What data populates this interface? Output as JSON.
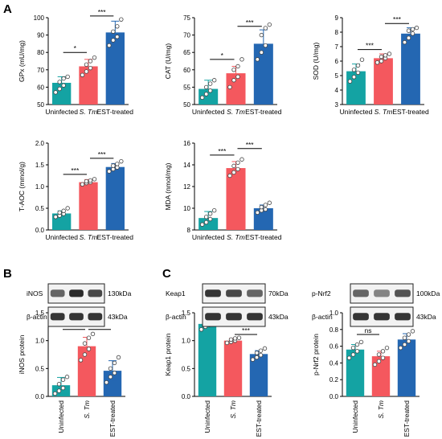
{
  "colors": {
    "uninfected": "#14a3a3",
    "stm": "#f4585e",
    "est": "#2467b2",
    "axis": "#000000",
    "band": "#2a2a2a",
    "dot": "#ffffff"
  },
  "panel_labels": [
    "A",
    "B",
    "C"
  ],
  "chart_data": [
    {
      "id": "gpx",
      "type": "bar",
      "categories": [
        "Uninfected",
        "S. Tm",
        "EST-treated"
      ],
      "values": [
        62.5,
        72,
        91.5
      ],
      "errors": [
        3.5,
        4,
        6.5
      ],
      "points": [
        [
          57,
          59,
          61,
          63,
          65,
          66
        ],
        [
          67,
          69,
          71,
          73,
          75,
          77
        ],
        [
          84,
          87,
          89,
          92,
          95,
          99
        ]
      ],
      "ylabel": "GPx (mU/mg)",
      "ylim": [
        50,
        100
      ],
      "yticks": [
        "50",
        "60",
        "70",
        "80",
        "90",
        "100"
      ],
      "sig": [
        {
          "from": 0,
          "to": 1,
          "label": "*",
          "y": 80
        },
        {
          "from": 1,
          "to": 2,
          "label": "***",
          "y": 101
        }
      ]
    },
    {
      "id": "cat",
      "type": "bar",
      "categories": [
        "Uninfected",
        "S. Tm",
        "EST-treated"
      ],
      "values": [
        54.5,
        59,
        67.5
      ],
      "errors": [
        2.5,
        2,
        4
      ],
      "points": [
        [
          52,
          53,
          54,
          55,
          56,
          57
        ],
        [
          55,
          57,
          58,
          60,
          61,
          63
        ],
        [
          63,
          65,
          67,
          70,
          72,
          73
        ]
      ],
      "ylabel": "CAT (U/mg)",
      "ylim": [
        50,
        75
      ],
      "yticks": [
        "50",
        "55",
        "60",
        "65",
        "70",
        "75"
      ],
      "sig": [
        {
          "from": 0,
          "to": 1,
          "label": "*",
          "y": 63
        },
        {
          "from": 1,
          "to": 2,
          "label": "***",
          "y": 72.5
        }
      ]
    },
    {
      "id": "sod",
      "type": "bar",
      "categories": [
        "Uninfected",
        "S. Tm",
        "EST-treated"
      ],
      "values": [
        5.3,
        6.2,
        7.9
      ],
      "errors": [
        0.5,
        0.3,
        0.4
      ],
      "points": [
        [
          4.6,
          4.9,
          5.2,
          5.4,
          5.7,
          6.1
        ],
        [
          5.9,
          6.0,
          6.2,
          6.3,
          6.4,
          6.5
        ],
        [
          7.3,
          7.6,
          7.9,
          8.1,
          8.2,
          8.3
        ]
      ],
      "ylabel": "SOD (U/mg)",
      "ylim": [
        3,
        9
      ],
      "yticks": [
        "3",
        "4",
        "5",
        "6",
        "7",
        "8",
        "9"
      ],
      "sig": [
        {
          "from": 0,
          "to": 1,
          "label": "***",
          "y": 6.8
        },
        {
          "from": 1,
          "to": 2,
          "label": "***",
          "y": 8.6
        }
      ]
    },
    {
      "id": "taoc",
      "type": "bar",
      "categories": [
        "Uninfected",
        "S. Tm",
        "EST-treated"
      ],
      "values": [
        0.38,
        1.1,
        1.45
      ],
      "errors": [
        0.06,
        0.06,
        0.08
      ],
      "points": [
        [
          0.3,
          0.33,
          0.37,
          0.4,
          0.44,
          0.5
        ],
        [
          1.05,
          1.08,
          1.1,
          1.12,
          1.14,
          1.17
        ],
        [
          1.35,
          1.4,
          1.44,
          1.48,
          1.52,
          1.58
        ]
      ],
      "ylabel": "T-AOC (mmol/g)",
      "ylim": [
        0,
        2.0
      ],
      "yticks": [
        "0.0",
        "0.5",
        "1.0",
        "1.5",
        "2.0"
      ],
      "sig": [
        {
          "from": 0,
          "to": 1,
          "label": "***",
          "y": 1.28
        },
        {
          "from": 1,
          "to": 2,
          "label": "***",
          "y": 1.65
        }
      ]
    },
    {
      "id": "mda",
      "type": "bar",
      "categories": [
        "Uninfected",
        "S. Tm",
        "EST-treated"
      ],
      "values": [
        9.1,
        13.7,
        10
      ],
      "errors": [
        0.6,
        0.6,
        0.3
      ],
      "points": [
        [
          8.5,
          8.7,
          9,
          9.2,
          9.5,
          9.8
        ],
        [
          13,
          13.3,
          13.6,
          13.9,
          14.2,
          14.5
        ],
        [
          9.6,
          9.8,
          9.9,
          10.1,
          10.3,
          10.5
        ]
      ],
      "ylabel": "MDA (nmol/mg)",
      "ylim": [
        8,
        16
      ],
      "yticks": [
        "8",
        "10",
        "12",
        "14",
        "16"
      ],
      "sig": [
        {
          "from": 0,
          "to": 1,
          "label": "***",
          "y": 14.9
        },
        {
          "from": 1,
          "to": 2,
          "label": "***",
          "y": 15.5
        }
      ]
    },
    {
      "id": "inos",
      "type": "bar",
      "categories": [
        "Uninfected",
        "S. Tm",
        "EST-treated"
      ],
      "values": [
        0.2,
        0.9,
        0.46
      ],
      "errors": [
        0.14,
        0.16,
        0.18
      ],
      "points": [
        [
          0.05,
          0.1,
          0.15,
          0.22,
          0.3,
          0.35
        ],
        [
          0.65,
          0.75,
          0.85,
          0.95,
          1.05,
          1.12
        ],
        [
          0.25,
          0.35,
          0.42,
          0.5,
          0.6,
          0.7
        ]
      ],
      "ylabel": "iNOS protein",
      "ylim": [
        0,
        1.5
      ],
      "yticks": [
        "0.0",
        "0.5",
        "1.0",
        "1.5"
      ],
      "sig": [
        {
          "from": 0,
          "to": 1,
          "label": "***",
          "y": 1.2
        },
        {
          "from": 1,
          "to": 2,
          "label": "***",
          "y": 1.2
        }
      ]
    },
    {
      "id": "keap1",
      "type": "bar",
      "categories": [
        "Uninfected",
        "S. Tm",
        "EST-treated"
      ],
      "values": [
        1.3,
        1.0,
        0.76
      ],
      "errors": [
        0.06,
        0.04,
        0.06
      ],
      "points": [
        [
          1.2,
          1.25,
          1.28,
          1.32,
          1.36,
          1.38
        ],
        [
          0.96,
          0.98,
          1.0,
          1.02,
          1.04,
          1.05
        ],
        [
          0.66,
          0.7,
          0.74,
          0.78,
          0.82,
          0.86
        ]
      ],
      "ylabel": "Keap1 protein",
      "ylim": [
        0,
        1.5
      ],
      "yticks": [
        "0.0",
        "0.5",
        "1.0",
        "1.5"
      ],
      "sig": [
        {
          "from": 0,
          "to": 1,
          "label": "***",
          "y": 1.44
        },
        {
          "from": 1,
          "to": 2,
          "label": "***",
          "y": 1.11
        }
      ]
    },
    {
      "id": "pnrf2",
      "type": "bar",
      "categories": [
        "Uninfected",
        "S. Tm",
        "EST-treated"
      ],
      "values": [
        0.56,
        0.48,
        0.68
      ],
      "errors": [
        0.06,
        0.06,
        0.07
      ],
      "points": [
        [
          0.46,
          0.5,
          0.54,
          0.58,
          0.62,
          0.65
        ],
        [
          0.38,
          0.42,
          0.46,
          0.5,
          0.54,
          0.58
        ],
        [
          0.58,
          0.62,
          0.66,
          0.7,
          0.74,
          0.78
        ]
      ],
      "ylabel": "p-Nrf2 protein",
      "ylim": [
        0,
        1.0
      ],
      "yticks": [
        "0.0",
        "0.2",
        "0.4",
        "0.6",
        "0.8",
        "1.0"
      ],
      "sig": [
        {
          "from": 0,
          "to": 1,
          "label": "ns",
          "y": 0.74
        },
        {
          "from": 1,
          "to": 2,
          "label": "***",
          "y": 0.84
        }
      ]
    }
  ],
  "blots": [
    {
      "id": "blot-inos",
      "rows": [
        {
          "label": "iNOS",
          "size": "130kDa",
          "intensity": [
            0.7,
            1.0,
            0.85
          ]
        },
        {
          "label": "β-actin",
          "size": "43kDa",
          "intensity": [
            0.95,
            0.95,
            0.95
          ]
        }
      ]
    },
    {
      "id": "blot-keap1",
      "rows": [
        {
          "label": "Keap1",
          "size": "70kDa",
          "intensity": [
            0.95,
            0.85,
            0.7
          ]
        },
        {
          "label": "β-actin",
          "size": "43kDa",
          "intensity": [
            0.95,
            0.95,
            0.95
          ]
        }
      ]
    },
    {
      "id": "blot-pnrf2",
      "rows": [
        {
          "label": "p-Nrf2",
          "size": "100kDa",
          "intensity": [
            0.7,
            0.55,
            0.8
          ]
        },
        {
          "label": "β-actin",
          "size": "43kDa",
          "intensity": [
            0.95,
            0.95,
            0.95
          ]
        }
      ]
    }
  ]
}
